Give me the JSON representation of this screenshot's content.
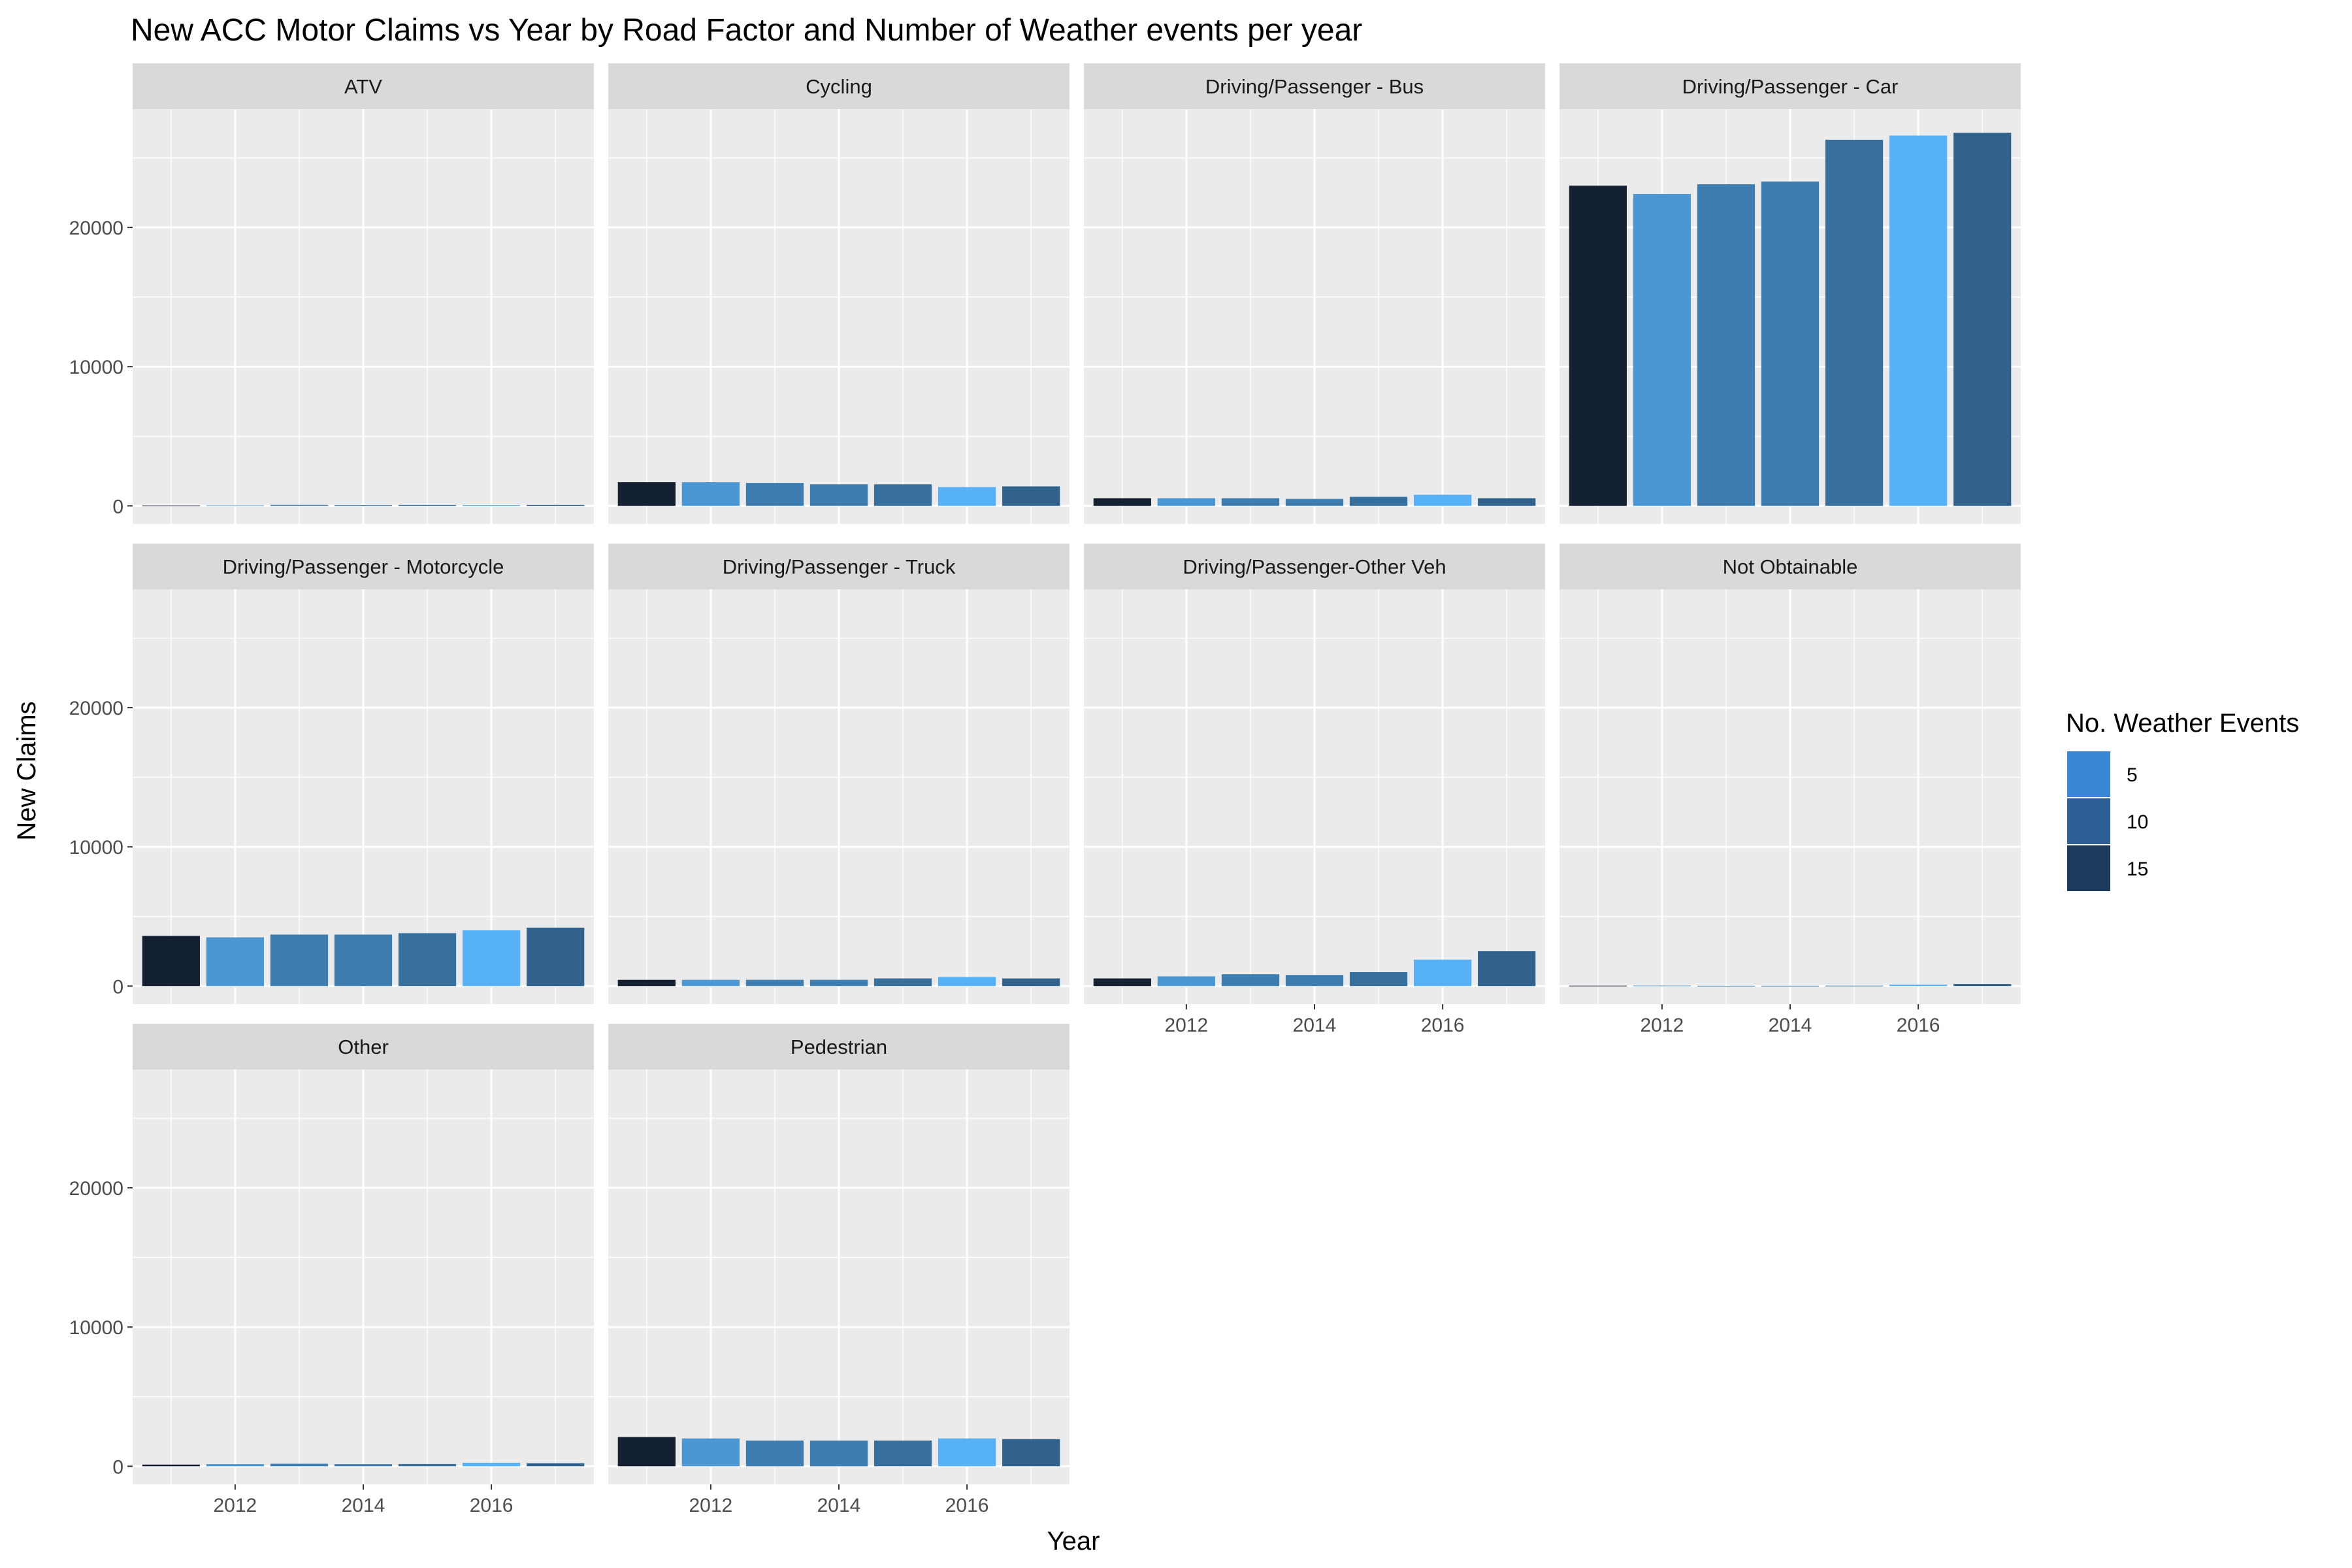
{
  "chart_data": {
    "type": "bar",
    "title": "New ACC Motor Claims vs Year by Road Factor and Number of Weather events per year",
    "xlabel": "Year",
    "ylabel": "New Claims",
    "years": [
      2011,
      2012,
      2013,
      2014,
      2015,
      2016,
      2017
    ],
    "x_ticks": [
      2012,
      2014,
      2016
    ],
    "y_ticks": [
      0,
      10000,
      20000
    ],
    "ylim": [
      -1300,
      28500
    ],
    "weather_events_per_year": [
      15,
      6,
      8,
      8,
      9,
      4,
      10
    ],
    "panels": [
      {
        "label": "ATV",
        "values": [
          30,
          40,
          70,
          60,
          70,
          60,
          70
        ]
      },
      {
        "label": "Cycling",
        "values": [
          1700,
          1700,
          1650,
          1550,
          1550,
          1350,
          1400
        ]
      },
      {
        "label": "Driving/Passenger - Bus",
        "values": [
          550,
          550,
          550,
          500,
          650,
          800,
          550
        ]
      },
      {
        "label": "Driving/Passenger - Car",
        "values": [
          23000,
          22400,
          23100,
          23300,
          26300,
          26600,
          26800
        ]
      },
      {
        "label": "Driving/Passenger - Motorcycle",
        "values": [
          3600,
          3500,
          3700,
          3700,
          3800,
          4000,
          4200
        ]
      },
      {
        "label": "Driving/Passenger - Truck",
        "values": [
          450,
          450,
          450,
          450,
          550,
          650,
          550
        ]
      },
      {
        "label": "Driving/Passenger-Other Veh",
        "values": [
          550,
          700,
          850,
          800,
          1000,
          1900,
          2500
        ]
      },
      {
        "label": "Not Obtainable",
        "values": [
          30,
          40,
          20,
          20,
          30,
          100,
          150
        ]
      },
      {
        "label": "Other",
        "values": [
          120,
          150,
          180,
          150,
          160,
          250,
          220
        ]
      },
      {
        "label": "Pedestrian",
        "values": [
          2100,
          2000,
          1850,
          1850,
          1850,
          2000,
          1950
        ]
      }
    ],
    "legend": {
      "title": "No. Weather Events",
      "placement": "right",
      "entries": [
        {
          "label": "5",
          "color": "#3a86d4"
        },
        {
          "label": "10",
          "color": "#2e5f94"
        },
        {
          "label": "15",
          "color": "#1c3a5c"
        }
      ]
    },
    "color_scale": {
      "low": "#132132",
      "high": "#56b1f7",
      "low_value": 15,
      "high_value": 4
    }
  }
}
